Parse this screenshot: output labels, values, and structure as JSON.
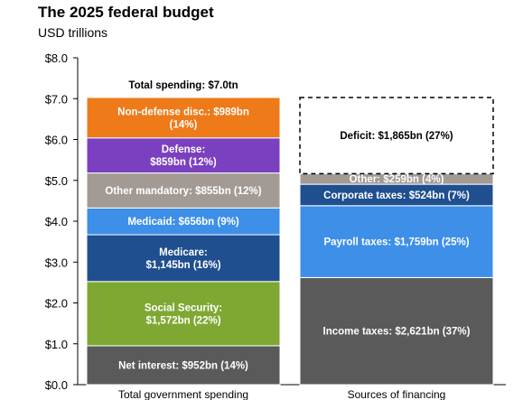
{
  "chart_data": {
    "type": "bar",
    "stacked": true,
    "title": "The 2025 federal budget",
    "subtitle": "USD trillions",
    "categories": [
      "Total government spending",
      "Sources of financing"
    ],
    "ylim": [
      0,
      8
    ],
    "yticks": [
      0,
      1,
      2,
      3,
      4,
      5,
      6,
      7,
      8
    ],
    "ytick_labels": [
      "$0.0",
      "$1.0",
      "$2.0",
      "$3.0",
      "$4.0",
      "$5.0",
      "$6.0",
      "$7.0",
      "$8.0"
    ],
    "grid": false,
    "annotation": "Total spending: $7.0tn",
    "stacks": [
      {
        "category": "Total government spending",
        "segments": [
          {
            "name": "Net interest",
            "value": 0.952,
            "lines": [
              "Net interest: $952bn (14%)"
            ],
            "color": "#5a5a5a",
            "text_color": "#ffffff"
          },
          {
            "name": "Social Security",
            "value": 1.572,
            "lines": [
              "Social Security:",
              "$1,572bn (22%)"
            ],
            "color": "#7fa832",
            "text_color": "#ffffff"
          },
          {
            "name": "Medicare",
            "value": 1.145,
            "lines": [
              "Medicare:",
              "$1,145bn (16%)"
            ],
            "color": "#1f4f8f",
            "text_color": "#ffffff"
          },
          {
            "name": "Medicaid",
            "value": 0.656,
            "lines": [
              "Medicaid: $656bn (9%)"
            ],
            "color": "#3d8fe8",
            "text_color": "#ffffff"
          },
          {
            "name": "Other mandatory",
            "value": 0.855,
            "lines": [
              "Other mandatory: $855bn (12%)"
            ],
            "color": "#a39a94",
            "text_color": "#ffffff"
          },
          {
            "name": "Defense",
            "value": 0.859,
            "lines": [
              "Defense:",
              "$859bn (12%)"
            ],
            "color": "#7a40c0",
            "text_color": "#ffffff"
          },
          {
            "name": "Non-defense disc.",
            "value": 0.989,
            "lines": [
              "Non-defense disc.: $989bn",
              "(14%)"
            ],
            "color": "#ee7a1a",
            "text_color": "#ffffff"
          }
        ]
      },
      {
        "category": "Sources of financing",
        "segments": [
          {
            "name": "Income taxes",
            "value": 2.621,
            "lines": [
              "Income taxes: $2,621bn (37%)"
            ],
            "color": "#5a5a5a",
            "text_color": "#ffffff"
          },
          {
            "name": "Payroll taxes",
            "value": 1.759,
            "lines": [
              "Payroll taxes: $1,759bn (25%)"
            ],
            "color": "#3d8fe8",
            "text_color": "#ffffff"
          },
          {
            "name": "Corporate taxes",
            "value": 0.524,
            "lines": [
              "Corporate taxes: $524bn (7%)"
            ],
            "color": "#1f4f8f",
            "text_color": "#ffffff"
          },
          {
            "name": "Other",
            "value": 0.259,
            "lines": [
              "Other: $259bn (4%)"
            ],
            "color": "#a39a94",
            "text_color": "#ffffff"
          },
          {
            "name": "Deficit",
            "value": 1.865,
            "lines": [
              "Deficit: $1,865bn (27%)"
            ],
            "color": "#ffffff",
            "text_color": "#000000",
            "dashed": true
          }
        ]
      }
    ]
  }
}
